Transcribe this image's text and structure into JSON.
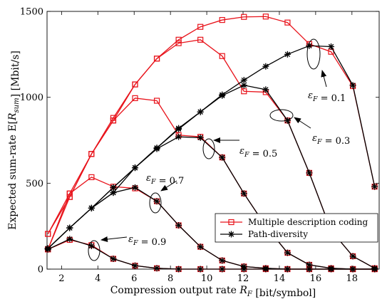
{
  "chart_data": {
    "type": "line",
    "xlabel": "Compression output rate R_F [bit/symbol]",
    "ylabel": "Expected sum-rate E[R_sum] [Mbit/s]",
    "xlim": [
      1.2,
      19.5
    ],
    "ylim": [
      0,
      1500
    ],
    "xticks": [
      2,
      4,
      6,
      8,
      10,
      12,
      14,
      16,
      18
    ],
    "yticks": [
      0,
      500,
      1000,
      1500
    ],
    "grid": false,
    "legend_position": "bottom-right",
    "legend": [
      {
        "name": "Multiple description coding",
        "color": "#e8131b",
        "marker": "square"
      },
      {
        "name": "Path-diversity",
        "color": "#000000",
        "marker": "asterisk"
      }
    ],
    "x": [
      1.25,
      2.45,
      3.65,
      4.85,
      6.05,
      7.25,
      8.45,
      9.65,
      10.85,
      12.05,
      13.25,
      14.45,
      15.65,
      16.85,
      18.05,
      19.25
    ],
    "mdc_series": [
      {
        "eps": "0.1",
        "values": [
          205,
          440,
          670,
          880,
          1075,
          1225,
          1335,
          1410,
          1450,
          1468,
          1470,
          1435,
          1310,
          1265,
          1065,
          480
        ]
      },
      {
        "eps": "0.3",
        "values": [
          205,
          420,
          670,
          865,
          1075,
          1225,
          1315,
          1335,
          1240,
          1035,
          1030,
          865,
          560,
          225,
          75,
          5
        ]
      },
      {
        "eps": "0.5",
        "values": [
          115,
          420,
          670,
          865,
          995,
          980,
          780,
          770,
          650,
          440,
          250,
          95,
          25,
          5,
          0,
          0
        ]
      },
      {
        "eps": "0.7",
        "values": [
          115,
          440,
          535,
          480,
          470,
          395,
          255,
          130,
          50,
          15,
          5,
          0,
          0,
          0,
          0,
          0
        ]
      },
      {
        "eps": "0.9",
        "values": [
          115,
          170,
          140,
          60,
          20,
          5,
          0,
          0,
          0,
          0,
          0,
          0,
          0,
          0,
          0,
          0
        ]
      }
    ],
    "pd_series": [
      {
        "eps": "0.1",
        "values": [
          120,
          240,
          355,
          475,
          590,
          705,
          820,
          915,
          1015,
          1100,
          1180,
          1250,
          1300,
          1295,
          1070,
          480
        ]
      },
      {
        "eps": "0.3",
        "values": [
          120,
          240,
          355,
          475,
          590,
          705,
          815,
          915,
          1010,
          1070,
          1045,
          865,
          560,
          225,
          75,
          5
        ]
      },
      {
        "eps": "0.5",
        "values": [
          120,
          240,
          355,
          445,
          590,
          700,
          770,
          765,
          650,
          440,
          250,
          95,
          25,
          5,
          0,
          0
        ]
      },
      {
        "eps": "0.7",
        "values": [
          120,
          240,
          355,
          445,
          475,
          395,
          255,
          130,
          50,
          15,
          5,
          0,
          0,
          0,
          0,
          0
        ]
      },
      {
        "eps": "0.9",
        "values": [
          115,
          175,
          135,
          60,
          20,
          5,
          0,
          0,
          0,
          0,
          0,
          0,
          0,
          0,
          0,
          0
        ]
      }
    ],
    "annotations": [
      {
        "text": "ε_F = 0.1",
        "at": [
          16.9,
          1310
        ]
      },
      {
        "text": "ε_F = 0.3",
        "at": [
          14.5,
          870
        ]
      },
      {
        "text": "ε_F = 0.5",
        "at": [
          9.3,
          710
        ]
      },
      {
        "text": "ε_F = 0.7",
        "at": [
          7.1,
          370
        ]
      },
      {
        "text": "ε_F = 0.9",
        "at": [
          3.9,
          160
        ]
      }
    ]
  }
}
